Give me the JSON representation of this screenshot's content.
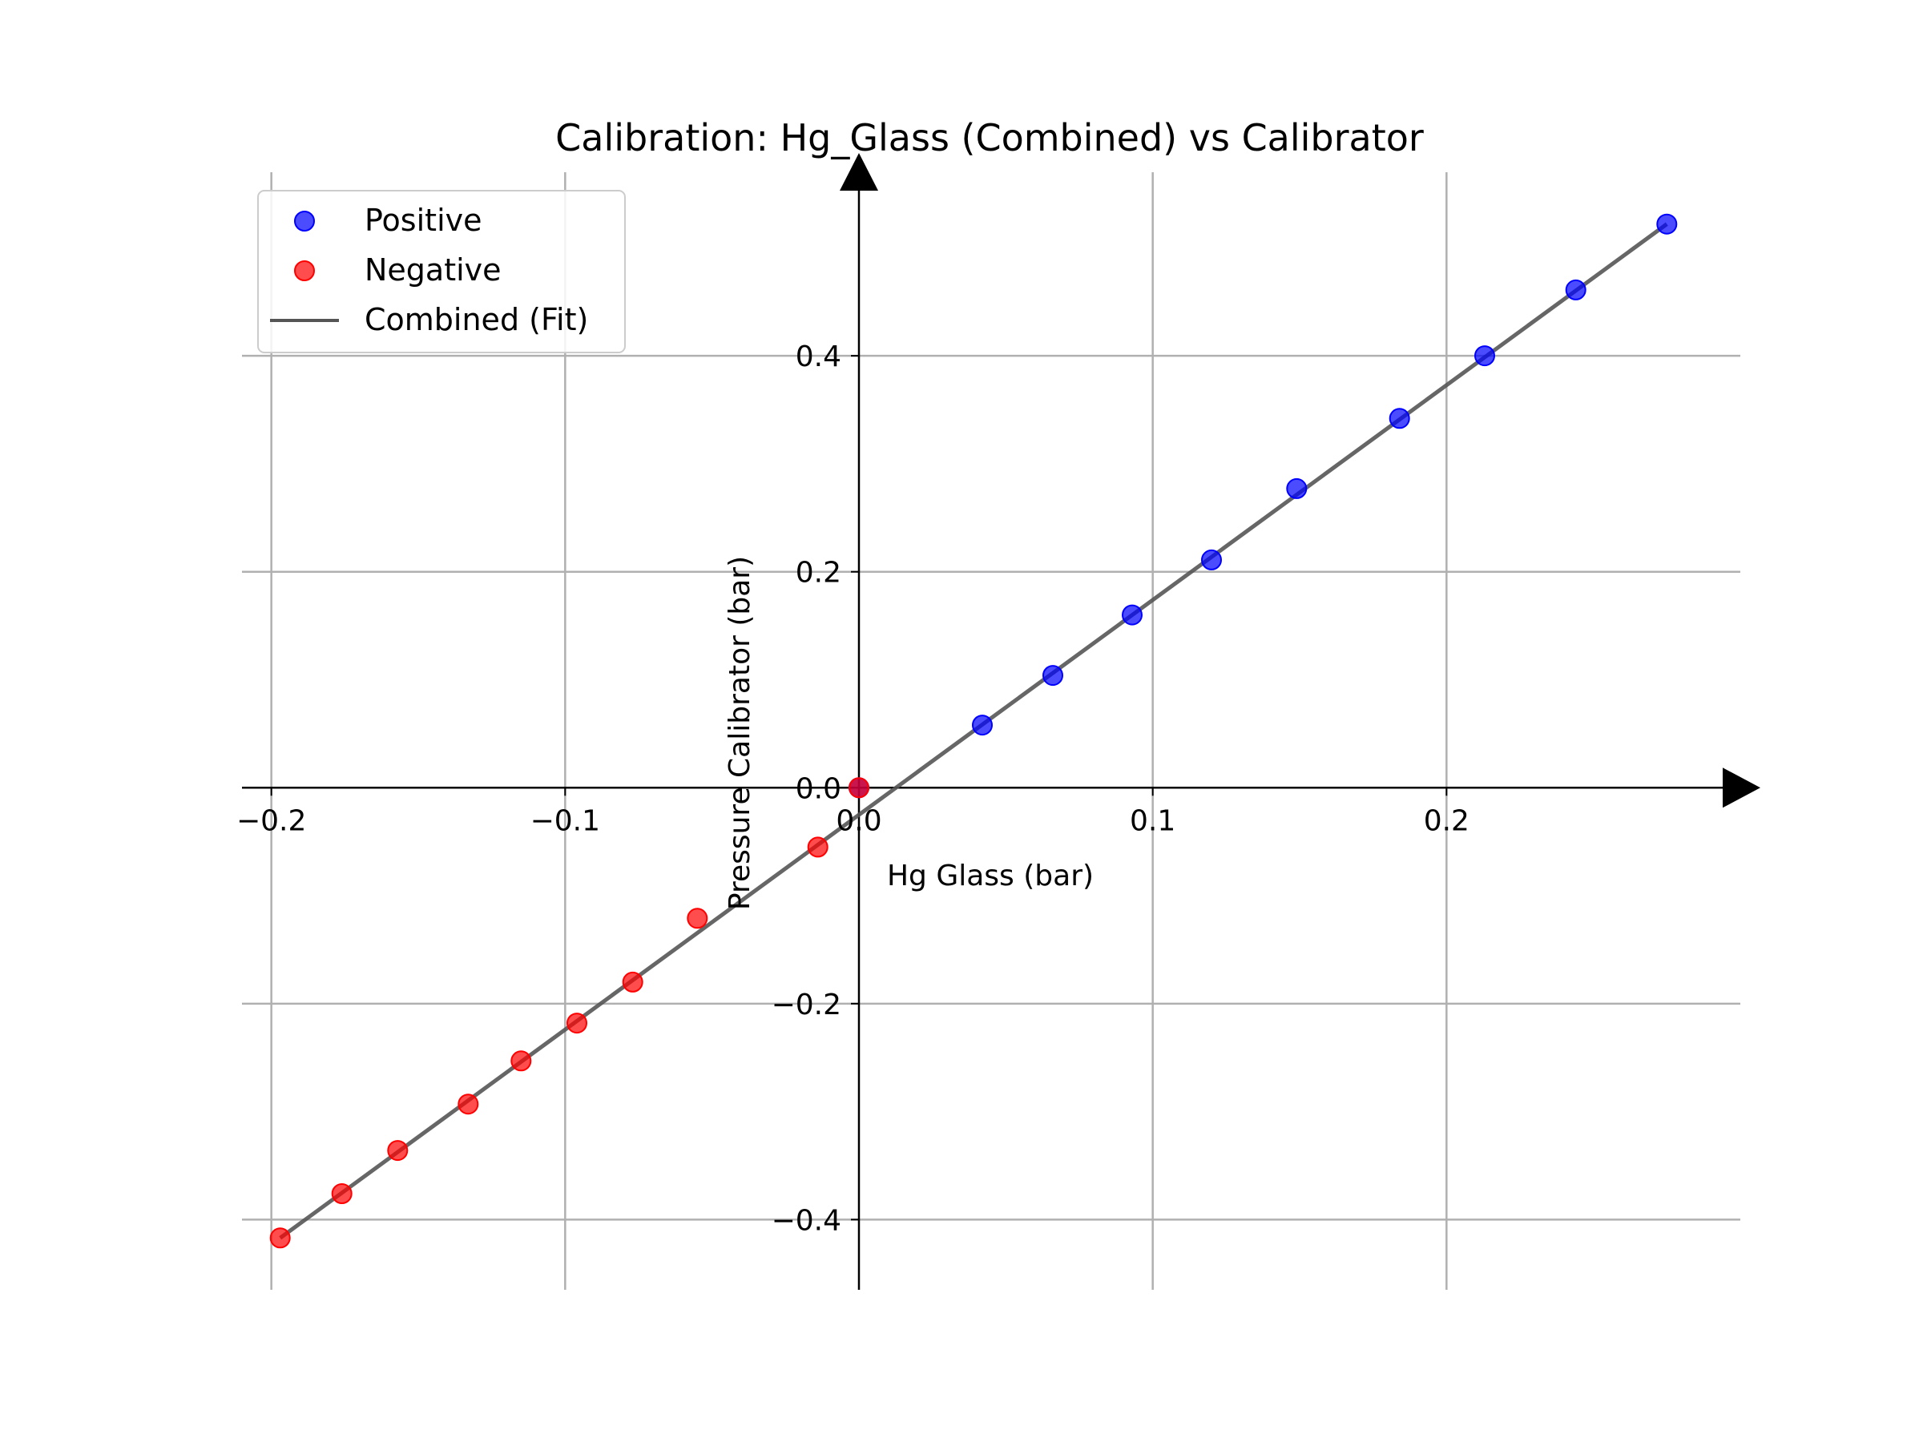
{
  "chart_data": {
    "type": "scatter",
    "title": "Calibration: Hg_Glass (Combined) vs Calibrator",
    "xlabel": "Hg Glass (bar)",
    "ylabel": "Pressure Calibrator (bar)",
    "xlim": [
      -0.21,
      0.3
    ],
    "ylim": [
      -0.465,
      0.57
    ],
    "xticks": [
      -0.2,
      -0.1,
      0.0,
      0.1,
      0.2
    ],
    "xtick_labels": [
      "−0.2",
      "−0.1",
      "0.0",
      "0.1",
      "0.2"
    ],
    "yticks": [
      -0.4,
      -0.2,
      0.0,
      0.2,
      0.4
    ],
    "ytick_labels": [
      "−0.4",
      "−0.2",
      "0.0",
      "0.2",
      "0.4"
    ],
    "grid": true,
    "legend_position": "top-left",
    "series": [
      {
        "name": "Positive",
        "kind": "scatter",
        "color": "#0000ff",
        "x": [
          0.0,
          0.042,
          0.066,
          0.093,
          0.12,
          0.149,
          0.184,
          0.213,
          0.244,
          0.275
        ],
        "y": [
          0.0,
          0.058,
          0.104,
          0.16,
          0.211,
          0.277,
          0.342,
          0.4,
          0.461,
          0.522
        ]
      },
      {
        "name": "Negative",
        "kind": "scatter",
        "color": "#ff0000",
        "x": [
          0.0,
          -0.014,
          -0.055,
          -0.077,
          -0.096,
          -0.115,
          -0.133,
          -0.157,
          -0.176,
          -0.197
        ],
        "y": [
          0.0,
          -0.055,
          -0.121,
          -0.18,
          -0.218,
          -0.253,
          -0.293,
          -0.336,
          -0.376,
          -0.417
        ]
      },
      {
        "name": "Combined (Fit)",
        "kind": "line",
        "color": "#555555",
        "x": [
          -0.197,
          0.275
        ],
        "y": [
          -0.417,
          0.522
        ]
      }
    ]
  }
}
